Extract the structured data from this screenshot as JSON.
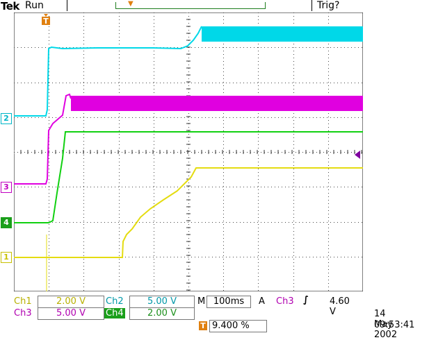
{
  "header": {
    "brand": "Tek",
    "status": "Run",
    "trigger_state": "Trig?"
  },
  "channels": {
    "ch1": {
      "label": "Ch1",
      "scale": "2.00 V",
      "marker": "1",
      "color": "#d4cc00"
    },
    "ch2": {
      "label": "Ch2",
      "scale": "5.00 V",
      "marker": "2",
      "color": "#00d0e0"
    },
    "ch3": {
      "label": "Ch3",
      "scale": "5.00 V",
      "marker": "3",
      "color": "#e000e0"
    },
    "ch4": {
      "label": "Ch4",
      "scale": "2.00 V",
      "marker": "4",
      "color": "#10d010"
    }
  },
  "timebase": {
    "prefix": "M",
    "value": "100ms"
  },
  "trigger": {
    "mode": "A",
    "source": "Ch3",
    "slope_symbol": "∫",
    "level": "4.60 V",
    "marker": "T",
    "position": "9.400 %"
  },
  "datetime": {
    "date": "14 May 2002",
    "time": "09:53:41"
  },
  "icons": {
    "trigger_marker": "trigger-position-icon",
    "trigger_level": "trigger-level-arrow-icon"
  }
}
